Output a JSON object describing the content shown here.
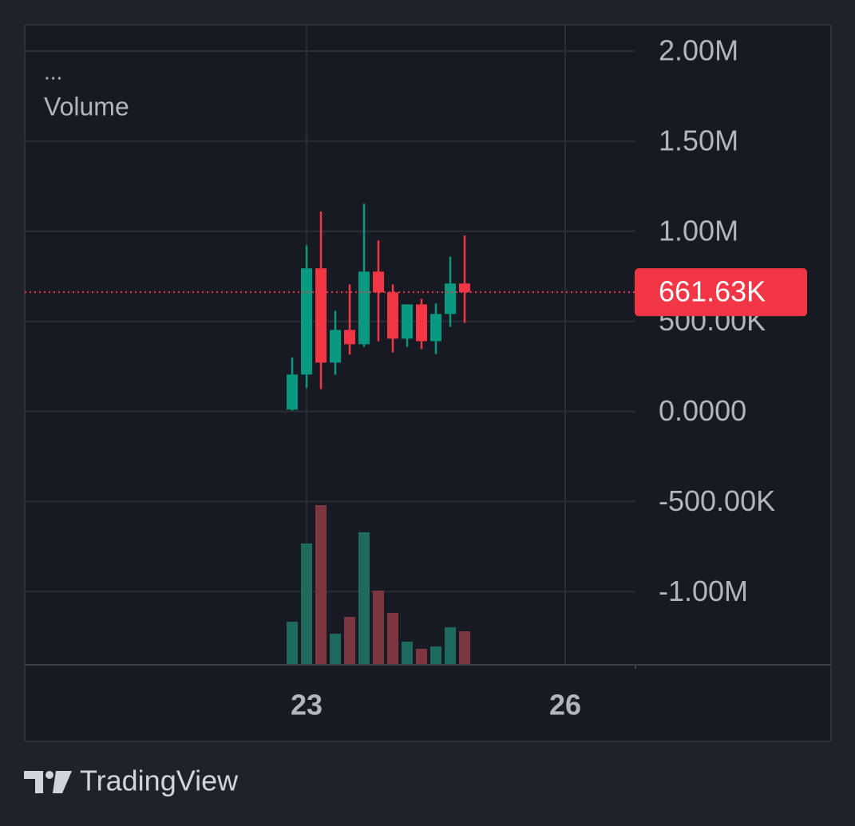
{
  "chart_data": {
    "type": "candlestick",
    "legend_title": "...",
    "volume_label": "Volume",
    "x": [
      22.8333,
      23,
      23.1667,
      23.3333,
      23.5,
      23.6667,
      23.8333,
      24,
      24.1667,
      24.3333,
      24.5,
      24.6667,
      24.8333
    ],
    "open": [
      10000,
      205000,
      794000,
      271000,
      452000,
      373000,
      776000,
      661000,
      404000,
      594000,
      390000,
      541000,
      710000
    ],
    "high": [
      300000,
      922000,
      1109000,
      559000,
      705000,
      1153000,
      949000,
      705000,
      594000,
      625000,
      599000,
      860000,
      976000
    ],
    "low": [
      5000,
      129000,
      124000,
      204000,
      315000,
      359000,
      390000,
      328000,
      359000,
      346000,
      319000,
      470000,
      492000
    ],
    "close": [
      205000,
      794000,
      271000,
      452000,
      373000,
      776000,
      661000,
      404000,
      594000,
      390000,
      541000,
      710000,
      661630
    ],
    "volume": [
      54,
      152,
      200,
      39,
      60,
      166,
      93,
      65,
      29,
      20,
      23,
      47,
      42
    ],
    "up_color": "#089981",
    "down_color": "#f23645",
    "volume_up_color": "#1f6a5e",
    "volume_down_color": "#7e3740",
    "xlim": [
      19.731,
      26.815
    ],
    "xticks": [
      23,
      26
    ],
    "ylim": [
      -1406000,
      2146000
    ],
    "yticks": [
      {
        "value": 2000000,
        "label": "2.00M"
      },
      {
        "value": 1500000,
        "label": "1.50M"
      },
      {
        "value": 1000000,
        "label": "1.00M"
      },
      {
        "value": 500000,
        "label": "500.00K"
      },
      {
        "value": 0,
        "label": "0.0000"
      },
      {
        "value": -500000,
        "label": "-500.00K"
      },
      {
        "value": -1000000,
        "label": "-1.00M"
      }
    ],
    "last_price": {
      "value": 661630,
      "label": "661.63K"
    },
    "grid": true
  },
  "footer": {
    "brand": "TradingView"
  }
}
